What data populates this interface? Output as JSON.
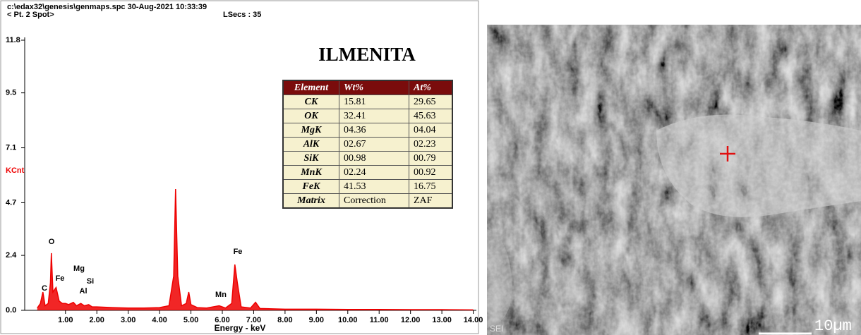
{
  "chart_data": {
    "type": "area",
    "header": {
      "file": "c:\\edax32\\genesis\\genmaps.spc  30-Aug-2021 10:33:39",
      "point": "< Pt.  2 Spot>",
      "lsecs": "LSecs : 35"
    },
    "title": "ILMENITA",
    "x_label": "Energy - keV",
    "y_label": "KCnt",
    "color": "#ee0000",
    "x": [
      0.1,
      0.2,
      0.28,
      0.35,
      0.45,
      0.52,
      0.55,
      0.6,
      0.7,
      0.8,
      0.9,
      1.0,
      1.1,
      1.25,
      1.35,
      1.49,
      1.6,
      1.74,
      1.85,
      2.0,
      2.5,
      3.0,
      3.5,
      4.0,
      4.3,
      4.45,
      4.51,
      4.58,
      4.7,
      4.85,
      4.93,
      5.0,
      5.2,
      5.5,
      5.9,
      6.1,
      6.3,
      6.4,
      6.48,
      6.6,
      6.9,
      7.06,
      7.2,
      8.0,
      9.0,
      10.0,
      11.0,
      12.0,
      13.0,
      14.0
    ],
    "values": [
      0.1,
      0.3,
      0.8,
      0.2,
      0.3,
      1.2,
      2.5,
      0.8,
      1.0,
      0.4,
      0.3,
      0.3,
      0.25,
      0.35,
      0.2,
      0.3,
      0.2,
      0.25,
      0.15,
      0.15,
      0.12,
      0.1,
      0.1,
      0.12,
      0.2,
      1.5,
      5.3,
      1.5,
      0.2,
      0.3,
      0.8,
      0.25,
      0.12,
      0.1,
      0.2,
      0.1,
      0.3,
      2.0,
      1.2,
      0.15,
      0.1,
      0.35,
      0.08,
      0.05,
      0.05,
      0.04,
      0.04,
      0.03,
      0.03,
      0.02
    ],
    "xlim": [
      -0.3,
      14.1
    ],
    "ylim": [
      0,
      11.8
    ],
    "xticks": [
      {
        "value": 1,
        "label": "1.00"
      },
      {
        "value": 2,
        "label": "2.00"
      },
      {
        "value": 3,
        "label": "3.00"
      },
      {
        "value": 4,
        "label": "4.00"
      },
      {
        "value": 5,
        "label": "5.00"
      },
      {
        "value": 6,
        "label": "6.00"
      },
      {
        "value": 7,
        "label": "7.00"
      },
      {
        "value": 8,
        "label": "8.00"
      },
      {
        "value": 9,
        "label": "9.00"
      },
      {
        "value": 10,
        "label": "10.00"
      },
      {
        "value": 11,
        "label": "11.00"
      },
      {
        "value": 12,
        "label": "12.00"
      },
      {
        "value": 13,
        "label": "13.00"
      },
      {
        "value": 14,
        "label": "14.00"
      }
    ],
    "yticks": [
      {
        "value": 0,
        "label": "0.0"
      },
      2.4,
      4.7,
      7.1,
      9.5,
      11.8
    ],
    "annotations": [
      "O",
      "C",
      "Fe",
      "Mg",
      "Si",
      "Al",
      "Mn",
      "Fe"
    ],
    "table": {
      "header": [
        "Element",
        "Wt%",
        "At%"
      ],
      "rows": [
        [
          "CK",
          "15.81",
          "29.65"
        ],
        [
          "OK",
          "32.41",
          "45.63"
        ],
        [
          "MgK",
          "04.36",
          "04.04"
        ],
        [
          "AlK",
          "02.67",
          "02.23"
        ],
        [
          "SiK",
          "00.98",
          "00.79"
        ],
        [
          "MnK",
          "02.24",
          "00.92"
        ],
        [
          "FeK",
          "41.53",
          "16.75"
        ],
        [
          "Matrix",
          "Correction",
          "ZAF"
        ]
      ]
    }
  },
  "image": {
    "detector": "SEI",
    "scale": "10µm"
  }
}
